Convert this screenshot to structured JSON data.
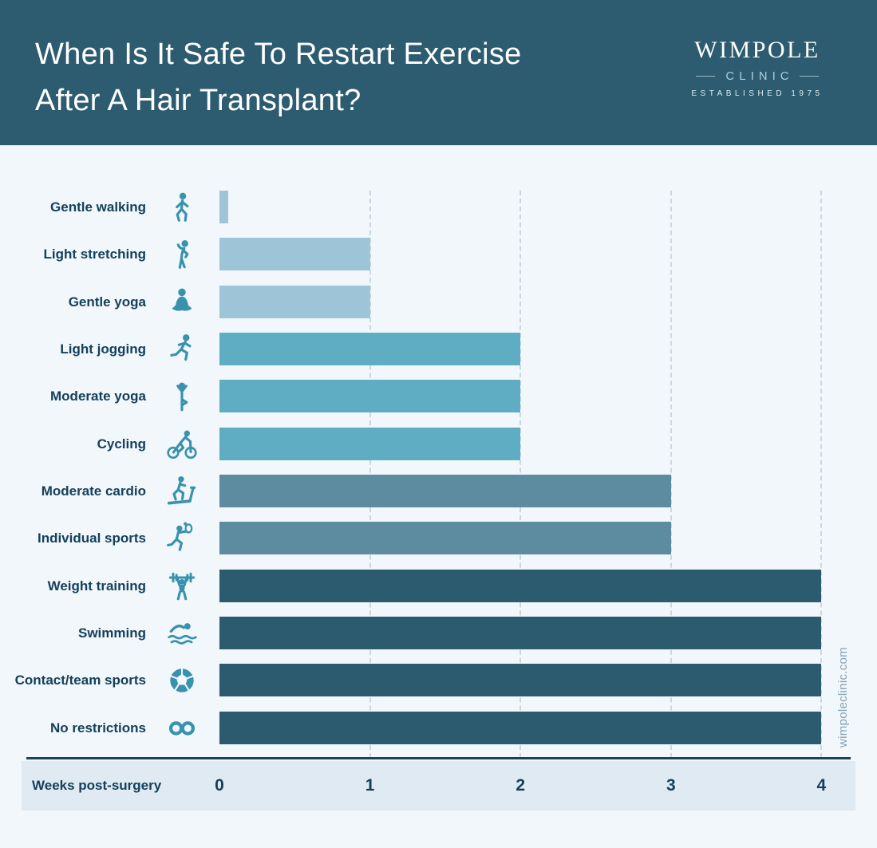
{
  "header": {
    "title_lines": [
      "When Is It Safe To Restart Exercise",
      "After A Hair Transplant?"
    ],
    "logo": {
      "brand": "WIMPOLE",
      "sub_brand": "CLINIC",
      "established": "ESTABLISHED 1975"
    }
  },
  "chart_data": {
    "type": "bar",
    "orientation": "horizontal",
    "title": "When Is It Safe To Restart Exercise After A Hair Transplant?",
    "xlabel": "Weeks post-surgery",
    "xlim": [
      0,
      4
    ],
    "x_ticks": [
      0,
      1,
      2,
      3,
      4
    ],
    "grid": "vertical-dashed",
    "rows": [
      {
        "label": "Gentle walking",
        "icon": "walking-person-icon",
        "weeks": 0.06,
        "color": "#9dc5d7"
      },
      {
        "label": "Light stretching",
        "icon": "stretching-person-icon",
        "weeks": 1,
        "color": "#9dc5d7"
      },
      {
        "label": "Gentle yoga",
        "icon": "lotus-pose-icon",
        "weeks": 1,
        "color": "#9dc5d7"
      },
      {
        "label": "Light jogging",
        "icon": "jogging-person-icon",
        "weeks": 2,
        "color": "#5fadc2"
      },
      {
        "label": "Moderate yoga",
        "icon": "tree-pose-icon",
        "weeks": 2,
        "color": "#5fadc2"
      },
      {
        "label": "Cycling",
        "icon": "cyclist-icon",
        "weeks": 2,
        "color": "#5fadc2"
      },
      {
        "label": "Moderate cardio",
        "icon": "treadmill-runner-icon",
        "weeks": 3,
        "color": "#5d8ba0"
      },
      {
        "label": "Individual sports",
        "icon": "racket-runner-icon",
        "weeks": 3,
        "color": "#5d8ba0"
      },
      {
        "label": "Weight training",
        "icon": "weightlifter-icon",
        "weeks": 4,
        "color": "#2c5b6f"
      },
      {
        "label": "Swimming",
        "icon": "swimmer-icon",
        "weeks": 4,
        "color": "#2c5b6f"
      },
      {
        "label": "Contact/team sports",
        "icon": "soccer-ball-icon",
        "weeks": 4,
        "color": "#2c5b6f"
      },
      {
        "label": "No restrictions",
        "icon": "infinity-icon",
        "weeks": 4,
        "color": "#2c5b6f"
      }
    ]
  },
  "axis": {
    "label": "Weeks post-surgery",
    "ticks": [
      "0",
      "1",
      "2",
      "3",
      "4"
    ]
  },
  "watermark": "wimpoleclinic.com",
  "colors": {
    "header_bg": "#2d5c70",
    "page_bg": "#f1f7fb",
    "band_bg": "#dfeaf2",
    "icon": "#3992ad",
    "label_text": "#14405a",
    "gridline": "#ccd7de",
    "axis_line": "#1c4257",
    "watermark": "#84a3b8",
    "logo_sub": "#a9cfdf"
  }
}
